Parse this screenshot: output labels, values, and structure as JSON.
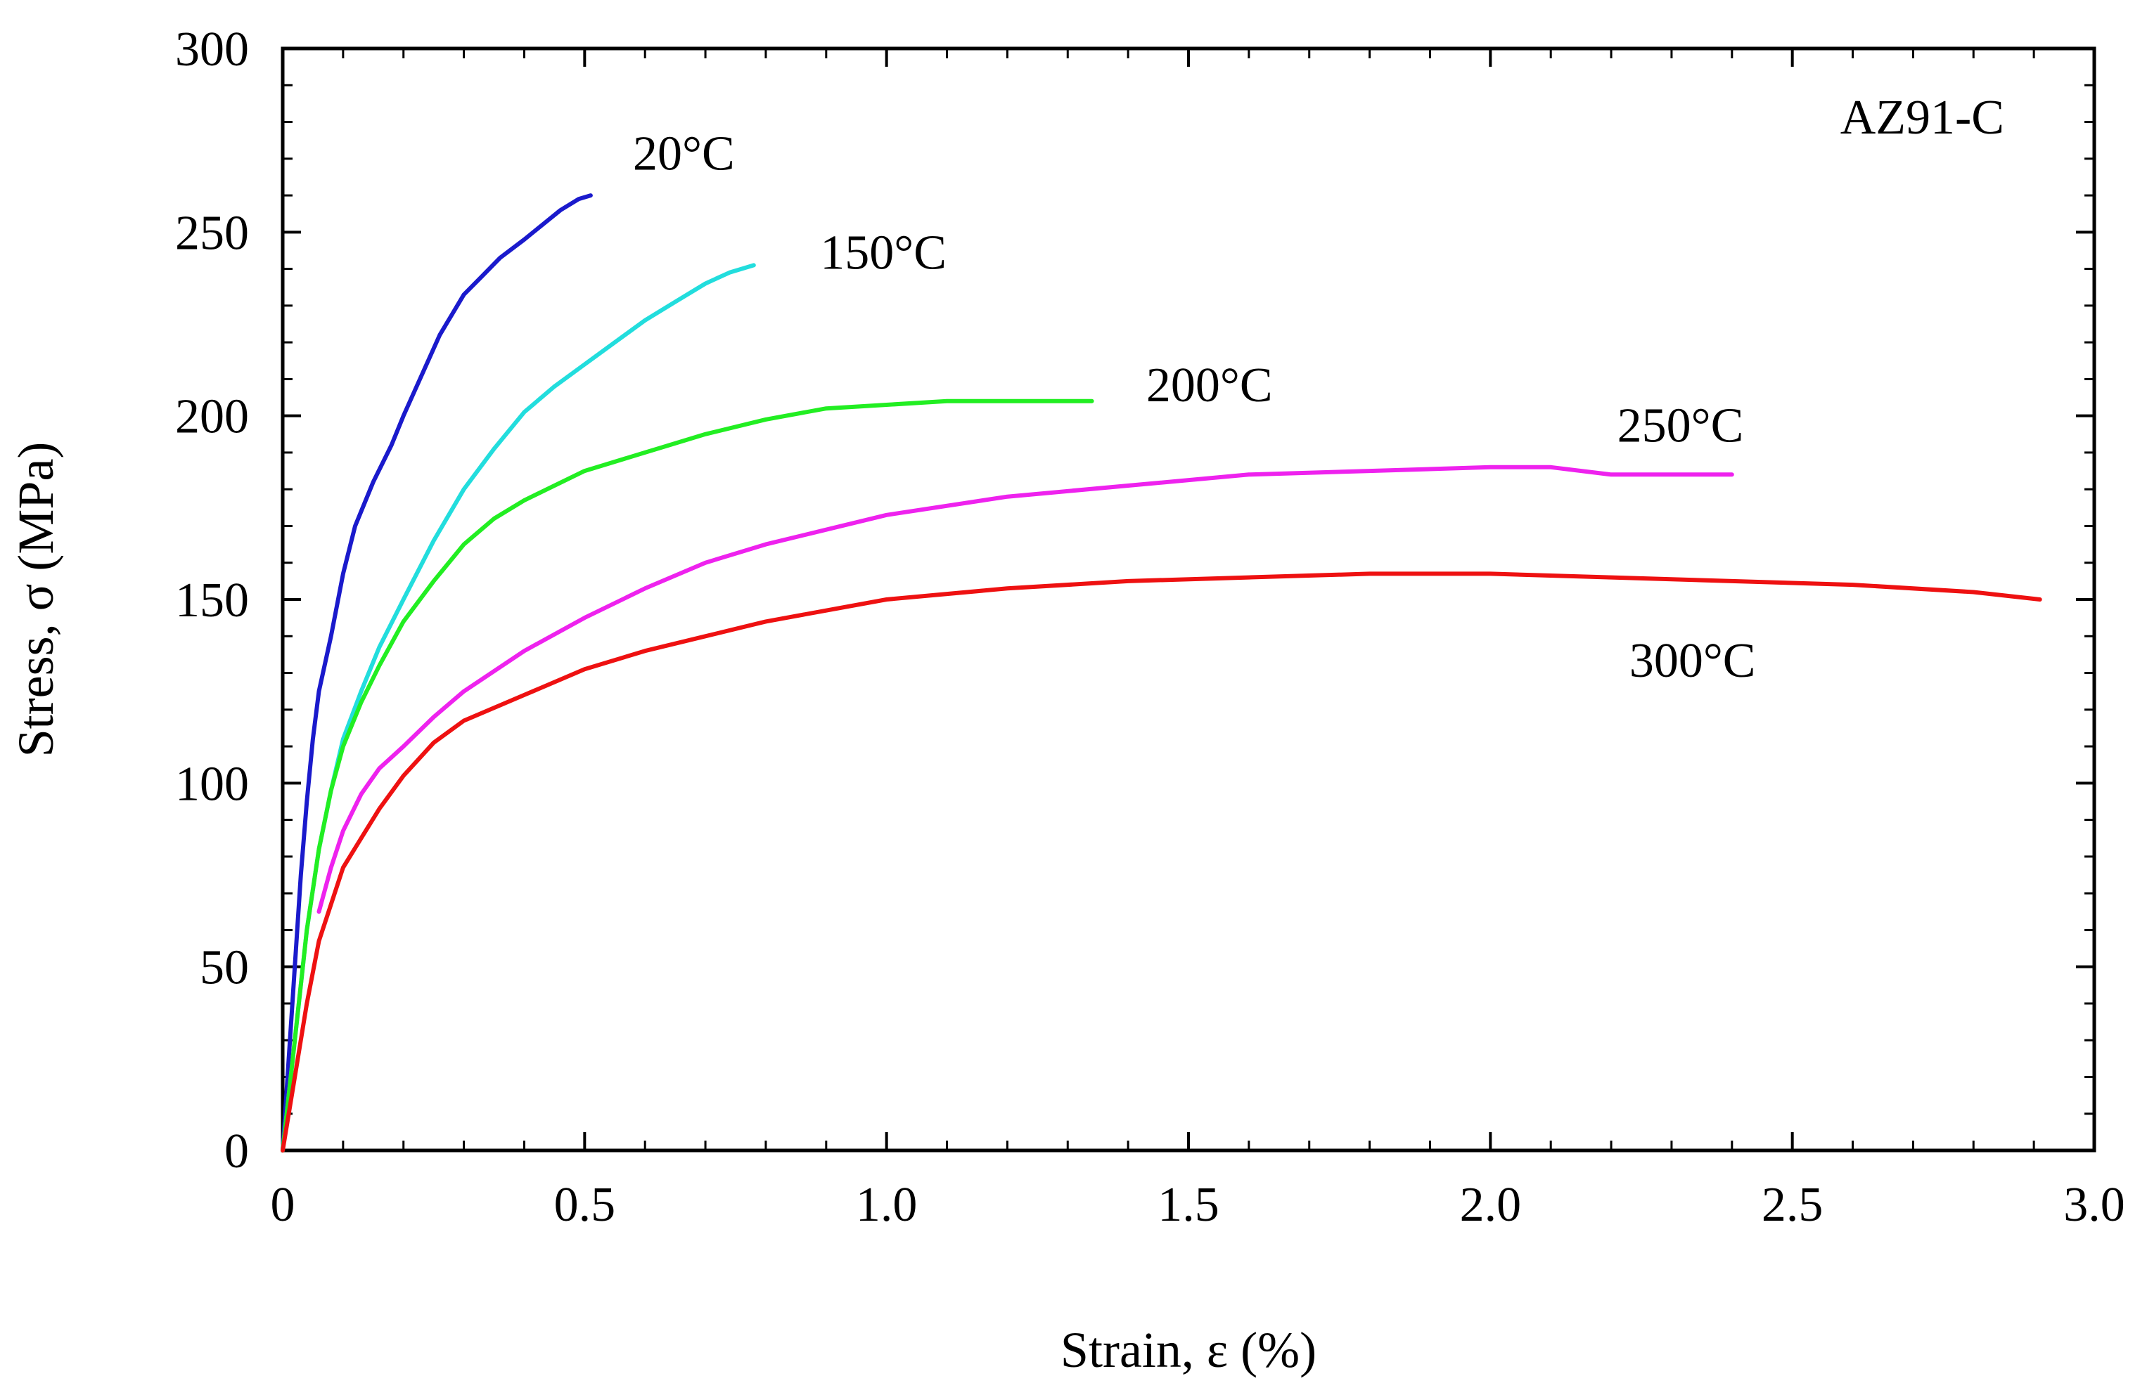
{
  "chart_data": {
    "type": "line",
    "title": "",
    "annotation": "AZ91-C",
    "xlabel": "Strain, ε (%)",
    "ylabel": "Stress, σ (MPa)",
    "xlim": [
      0,
      3.0
    ],
    "ylim": [
      0,
      300
    ],
    "grid": false,
    "x_ticks": [
      0,
      0.5,
      1.0,
      1.5,
      2.0,
      2.5,
      3.0
    ],
    "x_tick_labels": [
      "0",
      "0.5",
      "1.0",
      "1.5",
      "2.0",
      "2.5",
      "3.0"
    ],
    "y_ticks": [
      0,
      50,
      100,
      150,
      200,
      250,
      300
    ],
    "y_tick_labels": [
      "0",
      "50",
      "100",
      "150",
      "200",
      "250",
      "300"
    ],
    "series": [
      {
        "name": "20°C",
        "color": "#1a1acc",
        "label_at": [
          0.58,
          267
        ],
        "x": [
          0,
          0.01,
          0.02,
          0.03,
          0.04,
          0.05,
          0.06,
          0.08,
          0.1,
          0.12,
          0.15,
          0.18,
          0.2,
          0.23,
          0.26,
          0.3,
          0.33,
          0.36,
          0.4,
          0.43,
          0.46,
          0.49,
          0.51
        ],
        "y": [
          0,
          25,
          50,
          75,
          95,
          112,
          125,
          140,
          157,
          170,
          182,
          192,
          200,
          211,
          222,
          233,
          238,
          243,
          248,
          252,
          256,
          259,
          260
        ]
      },
      {
        "name": "150°C",
        "color": "#22dddd",
        "label_at": [
          0.89,
          240
        ],
        "x": [
          0,
          0.02,
          0.04,
          0.06,
          0.08,
          0.1,
          0.13,
          0.16,
          0.2,
          0.25,
          0.3,
          0.35,
          0.4,
          0.45,
          0.5,
          0.55,
          0.6,
          0.65,
          0.7,
          0.74,
          0.78
        ],
        "y": [
          0,
          30,
          60,
          82,
          98,
          112,
          125,
          137,
          150,
          166,
          180,
          191,
          201,
          208,
          214,
          220,
          226,
          231,
          236,
          239,
          241
        ]
      },
      {
        "name": "200°C",
        "color": "#22ee22",
        "label_at": [
          1.43,
          204
        ],
        "x": [
          0,
          0.02,
          0.04,
          0.06,
          0.08,
          0.1,
          0.13,
          0.16,
          0.2,
          0.25,
          0.3,
          0.35,
          0.4,
          0.5,
          0.6,
          0.7,
          0.8,
          0.9,
          1.0,
          1.1,
          1.2,
          1.34
        ],
        "y": [
          0,
          30,
          60,
          82,
          98,
          110,
          122,
          132,
          144,
          155,
          165,
          172,
          177,
          185,
          190,
          195,
          199,
          202,
          203,
          204,
          204,
          204
        ]
      },
      {
        "name": "250°C",
        "color": "#ee22ee",
        "label_at": [
          2.21,
          193
        ],
        "x": [
          0.06,
          0.08,
          0.1,
          0.13,
          0.16,
          0.2,
          0.25,
          0.3,
          0.4,
          0.5,
          0.6,
          0.7,
          0.8,
          0.9,
          1.0,
          1.2,
          1.4,
          1.6,
          1.8,
          2.0,
          2.1,
          2.2,
          2.4
        ],
        "y": [
          65,
          77,
          87,
          97,
          104,
          110,
          118,
          125,
          136,
          145,
          153,
          160,
          165,
          169,
          173,
          178,
          181,
          184,
          185,
          186,
          186,
          184,
          184
        ]
      },
      {
        "name": "300°C",
        "color": "#ee1111",
        "label_at": [
          2.23,
          129
        ],
        "x": [
          0,
          0.02,
          0.04,
          0.06,
          0.08,
          0.1,
          0.13,
          0.16,
          0.2,
          0.25,
          0.3,
          0.4,
          0.5,
          0.6,
          0.7,
          0.8,
          0.9,
          1.0,
          1.2,
          1.4,
          1.6,
          1.8,
          2.0,
          2.2,
          2.4,
          2.6,
          2.8,
          2.91
        ],
        "y": [
          0,
          20,
          40,
          57,
          67,
          77,
          85,
          93,
          102,
          111,
          117,
          124,
          131,
          136,
          140,
          144,
          147,
          150,
          153,
          155,
          156,
          157,
          157,
          156,
          155,
          154,
          152,
          150
        ]
      }
    ]
  }
}
